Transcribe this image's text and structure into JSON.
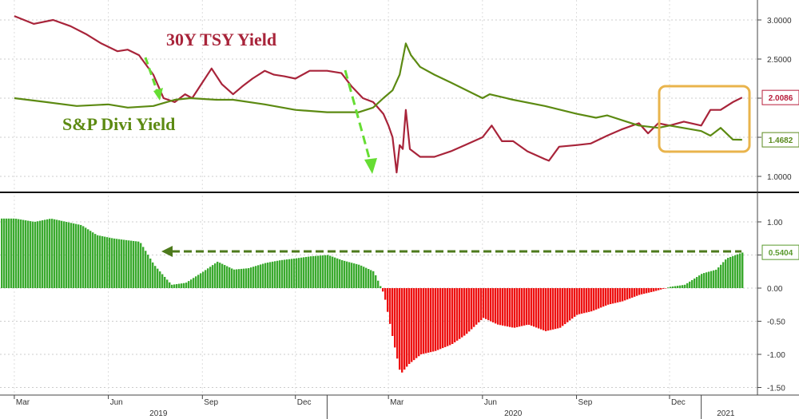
{
  "chart_data": [
    {
      "type": "line",
      "series": [
        {
          "name": "30Y TSY Yield",
          "color": "#a8243a",
          "x": [
            "2019-03-01",
            "2019-03-20",
            "2019-04-08",
            "2019-04-25",
            "2019-05-10",
            "2019-05-25",
            "2019-06-10",
            "2019-06-20",
            "2019-07-01",
            "2019-07-15",
            "2019-07-25",
            "2019-08-05",
            "2019-08-15",
            "2019-08-22",
            "2019-09-01",
            "2019-09-10",
            "2019-09-20",
            "2019-10-01",
            "2019-10-10",
            "2019-10-20",
            "2019-11-01",
            "2019-11-10",
            "2019-11-20",
            "2019-12-01",
            "2019-12-15",
            "2020-01-01",
            "2020-01-15",
            "2020-01-25",
            "2020-02-05",
            "2020-02-15",
            "2020-02-25",
            "2020-03-01",
            "2020-03-05",
            "2020-03-09",
            "2020-03-12",
            "2020-03-15",
            "2020-03-18",
            "2020-03-22",
            "2020-04-01",
            "2020-04-15",
            "2020-05-01",
            "2020-05-15",
            "2020-06-01",
            "2020-06-10",
            "2020-06-20",
            "2020-07-01",
            "2020-07-15",
            "2020-08-01",
            "2020-08-05",
            "2020-08-15",
            "2020-09-01",
            "2020-09-15",
            "2020-10-01",
            "2020-10-15",
            "2020-11-01",
            "2020-11-10",
            "2020-11-20",
            "2020-12-01",
            "2020-12-15",
            "2021-01-01",
            "2021-01-10",
            "2021-01-20",
            "2021-02-01",
            "2021-02-10"
          ],
          "values": [
            3.05,
            2.95,
            3.0,
            2.92,
            2.82,
            2.7,
            2.6,
            2.62,
            2.55,
            2.3,
            2.0,
            1.95,
            2.05,
            2.0,
            2.2,
            2.38,
            2.18,
            2.05,
            2.15,
            2.25,
            2.35,
            2.3,
            2.28,
            2.25,
            2.35,
            2.35,
            2.32,
            2.15,
            2.0,
            1.95,
            1.8,
            1.65,
            1.5,
            1.05,
            1.4,
            1.35,
            1.85,
            1.35,
            1.25,
            1.25,
            1.32,
            1.4,
            1.5,
            1.65,
            1.45,
            1.45,
            1.32,
            1.22,
            1.2,
            1.38,
            1.4,
            1.42,
            1.52,
            1.6,
            1.68,
            1.55,
            1.68,
            1.65,
            1.7,
            1.65,
            1.85,
            1.85,
            1.95,
            2.0086
          ]
        },
        {
          "name": "S&P Divi Yield",
          "color": "#5c8a12",
          "x": [
            "2019-03-01",
            "2019-04-01",
            "2019-05-01",
            "2019-06-01",
            "2019-06-20",
            "2019-07-15",
            "2019-08-05",
            "2019-08-20",
            "2019-09-15",
            "2019-10-01",
            "2019-11-01",
            "2019-12-01",
            "2020-01-01",
            "2020-02-01",
            "2020-02-15",
            "2020-02-25",
            "2020-03-05",
            "2020-03-12",
            "2020-03-18",
            "2020-03-23",
            "2020-04-01",
            "2020-04-15",
            "2020-05-01",
            "2020-06-01",
            "2020-06-08",
            "2020-07-01",
            "2020-08-01",
            "2020-09-01",
            "2020-09-20",
            "2020-10-01",
            "2020-10-20",
            "2020-11-01",
            "2020-11-20",
            "2020-12-01",
            "2021-01-01",
            "2021-01-10",
            "2021-01-20",
            "2021-02-01",
            "2021-02-10"
          ],
          "values": [
            2.0,
            1.95,
            1.9,
            1.92,
            1.88,
            1.9,
            1.98,
            2.0,
            1.98,
            1.98,
            1.92,
            1.85,
            1.82,
            1.82,
            1.88,
            2.0,
            2.1,
            2.3,
            2.7,
            2.55,
            2.4,
            2.3,
            2.2,
            2.0,
            2.05,
            1.98,
            1.9,
            1.8,
            1.75,
            1.78,
            1.7,
            1.65,
            1.62,
            1.65,
            1.58,
            1.52,
            1.62,
            1.47,
            1.4682
          ]
        }
      ],
      "ylim": [
        0.8,
        3.2
      ],
      "y_ticks": [
        "3.0000",
        "2.5000",
        "2.0000",
        "1.5000",
        "1.0000"
      ],
      "last_value_labels": [
        {
          "value": "2.0086",
          "color": "#b71c3a"
        },
        {
          "value": "1.4682",
          "color": "#5a8a1e"
        }
      ],
      "annotations": [
        "30Y TSY Yield",
        "S&P Divi Yield"
      ],
      "legend": "none",
      "grid": true
    },
    {
      "type": "bar",
      "series": [
        {
          "name": "",
          "positive_color": "#3aaa2e",
          "negative_color": "#ee1111",
          "x": [
            "2019-03-01",
            "2019-03-20",
            "2019-04-05",
            "2019-04-20",
            "2019-05-05",
            "2019-05-20",
            "2019-06-05",
            "2019-06-20",
            "2019-07-01",
            "2019-07-15",
            "2019-08-01",
            "2019-08-15",
            "2019-09-01",
            "2019-09-15",
            "2019-10-01",
            "2019-10-15",
            "2019-11-01",
            "2019-11-15",
            "2019-12-01",
            "2019-12-15",
            "2020-01-01",
            "2020-01-15",
            "2020-02-01",
            "2020-02-15",
            "2020-02-25",
            "2020-03-05",
            "2020-03-12",
            "2020-03-20",
            "2020-04-01",
            "2020-04-15",
            "2020-05-01",
            "2020-05-15",
            "2020-06-01",
            "2020-06-15",
            "2020-07-01",
            "2020-07-15",
            "2020-08-01",
            "2020-08-15",
            "2020-09-01",
            "2020-09-15",
            "2020-10-01",
            "2020-10-15",
            "2020-11-01",
            "2020-11-15",
            "2020-12-01",
            "2020-12-15",
            "2021-01-01",
            "2021-01-15",
            "2021-01-25",
            "2021-02-10"
          ],
          "values": [
            1.05,
            1.0,
            1.05,
            1.0,
            0.95,
            0.8,
            0.75,
            0.72,
            0.7,
            0.35,
            0.05,
            0.08,
            0.25,
            0.4,
            0.28,
            0.3,
            0.38,
            0.42,
            0.45,
            0.48,
            0.5,
            0.42,
            0.35,
            0.25,
            -0.1,
            -0.8,
            -1.3,
            -1.15,
            -1.0,
            -0.95,
            -0.85,
            -0.7,
            -0.45,
            -0.55,
            -0.6,
            -0.55,
            -0.65,
            -0.6,
            -0.4,
            -0.35,
            -0.25,
            -0.2,
            -0.1,
            -0.05,
            0.02,
            0.05,
            0.22,
            0.28,
            0.45,
            0.5404
          ]
        }
      ],
      "ylim": [
        -1.5,
        1.3
      ],
      "y_ticks": [
        "1.00",
        "0.50",
        "0.00",
        "-0.50",
        "-1.00",
        "-1.50"
      ],
      "last_value_label": {
        "value": "0.5404",
        "color": "#5a9a2e"
      },
      "x_month_ticks": [
        "Mar",
        "Jun",
        "Sep",
        "Dec",
        "Mar",
        "Jun",
        "Sep",
        "Dec"
      ],
      "x_year_labels": [
        "2019",
        "2020",
        "2021"
      ],
      "legend": "none",
      "grid": true
    }
  ]
}
